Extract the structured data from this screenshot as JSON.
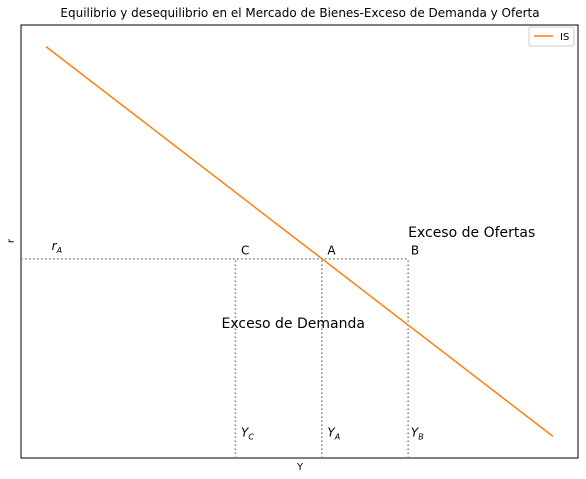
{
  "chart_data": {
    "type": "line",
    "title": "Equilibrio y desequilibrio en el Mercado de Bienes-Exceso de Demanda y Oferta",
    "xlabel": "Y",
    "ylabel": "r",
    "xlim": [
      0,
      10
    ],
    "ylim": [
      0,
      10
    ],
    "grid": false,
    "legend_position": "top-right",
    "xticks": [],
    "yticks": [],
    "series": [
      {
        "name": "IS",
        "color": "#ff7f0e",
        "x": [
          0.45,
          9.55
        ],
        "y": [
          9.5,
          0.5
        ]
      }
    ],
    "reference_lines": [
      {
        "kind": "horizontal",
        "y": 4.6,
        "x_from": 0,
        "x_to": 6.95
      },
      {
        "kind": "vertical",
        "x": 3.85,
        "y_from": 0,
        "y_to": 4.6
      },
      {
        "kind": "vertical",
        "x": 5.4,
        "y_from": 0,
        "y_to": 4.6
      },
      {
        "kind": "vertical",
        "x": 6.95,
        "y_from": 0,
        "y_to": 4.6
      }
    ],
    "annotations": {
      "rA": {
        "main": "r",
        "sub": "A",
        "x": 0.55,
        "y": 4.8
      },
      "C": {
        "text": "C",
        "x": 3.95,
        "y": 4.7
      },
      "A": {
        "text": "A",
        "x": 5.5,
        "y": 4.7
      },
      "B": {
        "text": "B",
        "x": 7.0,
        "y": 4.7
      },
      "YC": {
        "main": "Y",
        "sub": "C",
        "x": 3.95,
        "y": 0.5
      },
      "YA": {
        "main": "Y",
        "sub": "A",
        "x": 5.5,
        "y": 0.5
      },
      "YB": {
        "main": "Y",
        "sub": "B",
        "x": 7.0,
        "y": 0.5
      },
      "exceso_ofertas": {
        "text": "Exceso  de  Ofertas",
        "x": 6.95,
        "y": 5.1
      },
      "exceso_demanda": {
        "text": "Exceso  de  Demanda",
        "x": 3.6,
        "y": 3.0
      }
    },
    "line_color_reference": "#808080"
  }
}
